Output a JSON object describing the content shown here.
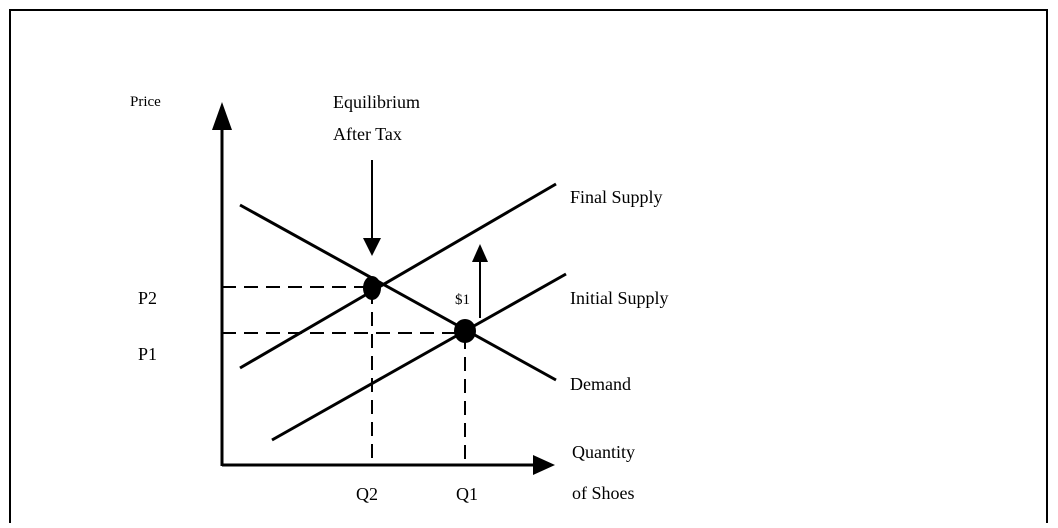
{
  "diagram": {
    "y_axis_label": "Price",
    "annotation": [
      "Equilibrium",
      "After Tax"
    ],
    "curves": {
      "final_supply": "Final Supply",
      "initial_supply": "Initial Supply",
      "demand": "Demand"
    },
    "prices": {
      "p2": "P2",
      "p1": "P1"
    },
    "tax": "$1",
    "quantities": {
      "q2": "Q2",
      "q1": "Q1"
    },
    "x_axis_label": [
      "Quantity",
      "of Shoes"
    ]
  }
}
